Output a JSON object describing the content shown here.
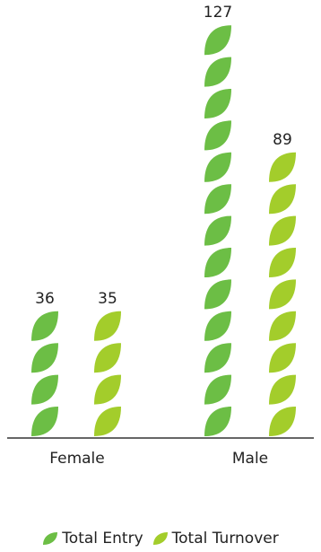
{
  "chart_data": {
    "type": "bar",
    "categories": [
      "Female",
      "Male"
    ],
    "series": [
      {
        "name": "Total Entry",
        "values": [
          36,
          127
        ],
        "color": "#6cbe45"
      },
      {
        "name": "Total Turnover",
        "values": [
          35,
          89
        ],
        "color": "#a3cd2b"
      }
    ],
    "legend_position": "bottom-center",
    "ylim": [
      0,
      127
    ],
    "unit_per_icon": 10,
    "icon": "leaf-icon"
  }
}
